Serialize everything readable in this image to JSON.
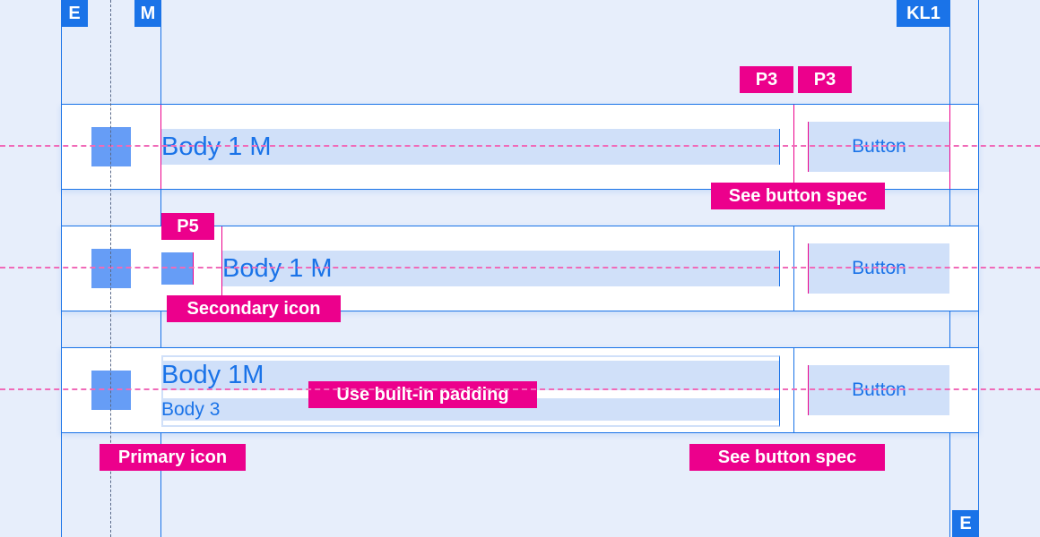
{
  "keylines": {
    "edge_top": "E",
    "margin": "M",
    "keyline": "KL1",
    "edge_bottom": "E"
  },
  "rows": [
    {
      "primary_text": "Body 1 M",
      "button": "Button"
    },
    {
      "primary_text": "Body 1 M",
      "button": "Button"
    },
    {
      "primary_text": "Body 1M",
      "secondary_text": "Body 3",
      "button": "Button"
    }
  ],
  "annotations": {
    "p3_left": "P3",
    "p3_right": "P3",
    "p5": "P5",
    "see_button_spec_1": "See button spec",
    "see_button_spec_2": "See button spec",
    "secondary_icon": "Secondary icon",
    "primary_icon": "Primary icon",
    "built_in_padding": "Use built-in padding"
  },
  "colors": {
    "keyline": "#1a73e8",
    "annotation": "#ec008c",
    "highlight": "#d0e0f9",
    "icon": "#669df6",
    "background": "#e7eefb"
  }
}
